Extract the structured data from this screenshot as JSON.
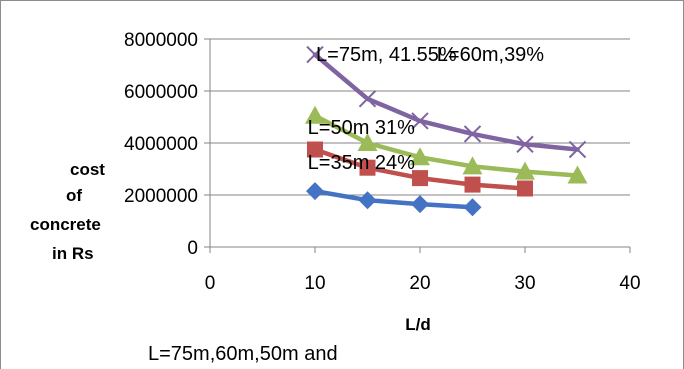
{
  "chart_data": {
    "type": "line",
    "title": "",
    "xlabel": "L/d",
    "ylabel": [
      "cost",
      "of",
      "concrete",
      "in Rs"
    ],
    "xlim": [
      0,
      40
    ],
    "ylim": [
      0,
      8000000
    ],
    "x_ticks": [
      "0",
      "10",
      "20",
      "30",
      "40"
    ],
    "y_ticks": [
      "0",
      "2000000",
      "4000000",
      "6000000",
      "8000000"
    ],
    "grid": "horizontal",
    "series": [
      {
        "color": "#4472C4",
        "marker": "diamond",
        "points": [
          [
            10,
            2150000
          ],
          [
            15,
            1800000
          ],
          [
            20,
            1650000
          ],
          [
            25,
            1530000
          ]
        ]
      },
      {
        "color": "#C0504D",
        "marker": "square",
        "points": [
          [
            10,
            3750000
          ],
          [
            15,
            3050000
          ],
          [
            20,
            2650000
          ],
          [
            25,
            2400000
          ],
          [
            30,
            2250000
          ]
        ]
      },
      {
        "color": "#9BBB59",
        "marker": "triangle",
        "points": [
          [
            10,
            5050000
          ],
          [
            15,
            4000000
          ],
          [
            20,
            3450000
          ],
          [
            25,
            3100000
          ],
          [
            30,
            2900000
          ],
          [
            35,
            2750000
          ]
        ]
      },
      {
        "color": "#8064A2",
        "marker": "x",
        "points": [
          [
            10,
            7400000
          ],
          [
            15,
            5700000
          ],
          [
            20,
            4850000
          ],
          [
            25,
            4350000
          ],
          [
            30,
            3950000
          ],
          [
            35,
            3750000
          ]
        ]
      }
    ],
    "annotations": [
      {
        "text": "L=75m, 41.55%",
        "x": 10.1,
        "y": 7150000
      },
      {
        "text": "L=60m,39%",
        "x": 21.6,
        "y": 7150000
      },
      {
        "text": "L=50m 31%",
        "x": 9.3,
        "y": 4350000
      },
      {
        "text": "L=35m 24%",
        "x": 9.3,
        "y": 3000000
      }
    ]
  },
  "caption": "L=75m,60m,50m and"
}
